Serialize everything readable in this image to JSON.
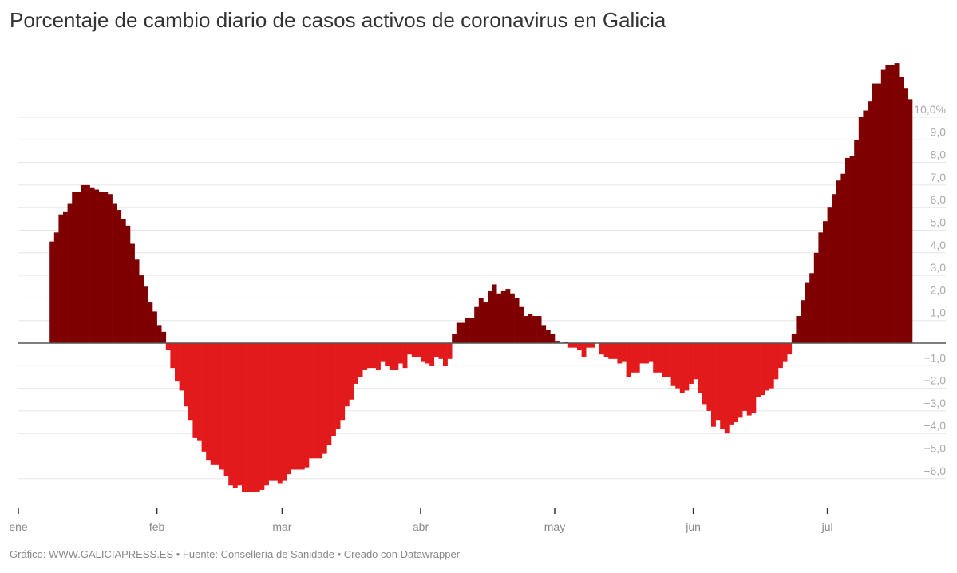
{
  "title": "Porcentaje de cambio diario de casos activos de coronavirus en Galicia",
  "footer": "Gráfico: WWW.GALICIAPRESS.ES • Fuente: Consellería de Sanidade • Creado con Datawrapper",
  "chart_data": {
    "type": "bar",
    "title": "Porcentaje de cambio diario de casos activos de coronavirus en Galicia",
    "xlabel": "",
    "ylabel": "",
    "ylim": [
      -6.6,
      12.4
    ],
    "grid": true,
    "colors": {
      "positive": "#7f0000",
      "negative": "#e31a1c"
    },
    "y_ticks": [
      {
        "value": 10,
        "label": "10,0%"
      },
      {
        "value": 9,
        "label": "9,0"
      },
      {
        "value": 8,
        "label": "8,0"
      },
      {
        "value": 7,
        "label": "7,0"
      },
      {
        "value": 6,
        "label": "6,0"
      },
      {
        "value": 5,
        "label": "5,0"
      },
      {
        "value": 4,
        "label": "4,0"
      },
      {
        "value": 3,
        "label": "3,0"
      },
      {
        "value": 2,
        "label": "2,0"
      },
      {
        "value": 1,
        "label": "1,0"
      },
      {
        "value": -1,
        "label": "−1,0"
      },
      {
        "value": -2,
        "label": "−2,0"
      },
      {
        "value": -3,
        "label": "−3,0"
      },
      {
        "value": -4,
        "label": "−4,0"
      },
      {
        "value": -5,
        "label": "−5,0"
      },
      {
        "value": -6,
        "label": "−6,0"
      }
    ],
    "x_ticks": [
      {
        "date": "01-01",
        "label": "ene"
      },
      {
        "date": "02-01",
        "label": "feb"
      },
      {
        "date": "03-01",
        "label": "mar"
      },
      {
        "date": "04-01",
        "label": "abr"
      },
      {
        "date": "05-01",
        "label": "may"
      },
      {
        "date": "06-01",
        "label": "jun"
      },
      {
        "date": "07-01",
        "label": "jul"
      }
    ],
    "x": [
      "01-08",
      "01-09",
      "01-10",
      "01-11",
      "01-12",
      "01-13",
      "01-14",
      "01-15",
      "01-16",
      "01-17",
      "01-18",
      "01-19",
      "01-20",
      "01-21",
      "01-22",
      "01-23",
      "01-24",
      "01-25",
      "01-26",
      "01-27",
      "01-28",
      "01-29",
      "01-30",
      "01-31",
      "02-01",
      "02-02",
      "02-03",
      "02-04",
      "02-05",
      "02-06",
      "02-07",
      "02-08",
      "02-09",
      "02-10",
      "02-11",
      "02-12",
      "02-13",
      "02-14",
      "02-15",
      "02-16",
      "02-17",
      "02-18",
      "02-19",
      "02-20",
      "02-21",
      "02-22",
      "02-23",
      "02-24",
      "02-25",
      "02-26",
      "02-27",
      "02-28",
      "03-01",
      "03-02",
      "03-03",
      "03-04",
      "03-05",
      "03-06",
      "03-07",
      "03-08",
      "03-09",
      "03-10",
      "03-11",
      "03-12",
      "03-13",
      "03-14",
      "03-15",
      "03-16",
      "03-17",
      "03-18",
      "03-19",
      "03-20",
      "03-21",
      "03-22",
      "03-23",
      "03-24",
      "03-25",
      "03-26",
      "03-27",
      "03-28",
      "03-29",
      "03-30",
      "03-31",
      "04-01",
      "04-02",
      "04-03",
      "04-04",
      "04-05",
      "04-06",
      "04-07",
      "04-08",
      "04-09",
      "04-10",
      "04-11",
      "04-12",
      "04-13",
      "04-14",
      "04-15",
      "04-16",
      "04-17",
      "04-18",
      "04-19",
      "04-20",
      "04-21",
      "04-22",
      "04-23",
      "04-24",
      "04-25",
      "04-26",
      "04-27",
      "04-28",
      "04-29",
      "04-30",
      "05-01",
      "05-02",
      "05-03",
      "05-04",
      "05-05",
      "05-06",
      "05-07",
      "05-08",
      "05-09",
      "05-10",
      "05-11",
      "05-12",
      "05-13",
      "05-14",
      "05-15",
      "05-16",
      "05-17",
      "05-18",
      "05-19",
      "05-20",
      "05-21",
      "05-22",
      "05-23",
      "05-24",
      "05-25",
      "05-26",
      "05-27",
      "05-28",
      "05-29",
      "05-30",
      "05-31",
      "06-01",
      "06-02",
      "06-03",
      "06-04",
      "06-05",
      "06-06",
      "06-07",
      "06-08",
      "06-09",
      "06-10",
      "06-11",
      "06-12",
      "06-13",
      "06-14",
      "06-15",
      "06-16",
      "06-17",
      "06-18",
      "06-19",
      "06-20",
      "06-21",
      "06-22",
      "06-23",
      "06-24",
      "06-25",
      "06-26",
      "06-27",
      "06-28",
      "06-29",
      "06-30",
      "07-01",
      "07-02",
      "07-03",
      "07-04",
      "07-05",
      "07-06",
      "07-07",
      "07-08",
      "07-09",
      "07-10",
      "07-11",
      "07-12",
      "07-13",
      "07-14",
      "07-15",
      "07-16",
      "07-17",
      "07-18",
      "07-19"
    ],
    "values": [
      4.5,
      4.9,
      5.7,
      5.8,
      6.2,
      6.7,
      6.7,
      7.0,
      7.0,
      6.9,
      6.8,
      6.7,
      6.7,
      6.6,
      6.2,
      5.9,
      5.5,
      5.2,
      4.4,
      3.7,
      3.0,
      2.5,
      1.8,
      1.4,
      0.8,
      0.5,
      -0.3,
      -1.1,
      -1.7,
      -2.1,
      -2.8,
      -3.4,
      -4.2,
      -4.3,
      -4.8,
      -5.2,
      -5.4,
      -5.4,
      -5.6,
      -5.9,
      -6.3,
      -6.4,
      -6.3,
      -6.6,
      -6.6,
      -6.6,
      -6.6,
      -6.5,
      -6.3,
      -6.1,
      -6.1,
      -6.2,
      -6.1,
      -5.8,
      -5.6,
      -5.6,
      -5.6,
      -5.5,
      -5.1,
      -5.1,
      -5.1,
      -4.9,
      -4.5,
      -4.1,
      -3.8,
      -3.4,
      -2.8,
      -2.5,
      -1.8,
      -1.5,
      -1.2,
      -1.1,
      -1.1,
      -1.2,
      -0.8,
      -1.0,
      -1.2,
      -1.2,
      -0.9,
      -1.1,
      -0.5,
      -0.6,
      -0.6,
      -0.8,
      -0.9,
      -1.0,
      -0.6,
      -0.7,
      -1.0,
      -0.7,
      0.4,
      0.9,
      0.9,
      1.1,
      1.1,
      1.6,
      2.0,
      1.8,
      2.3,
      2.6,
      2.2,
      2.3,
      2.4,
      2.2,
      2.0,
      1.6,
      1.2,
      1.3,
      1.2,
      1.2,
      0.8,
      0.6,
      0.4,
      0.1,
      0.02,
      0.07,
      -0.2,
      -0.2,
      -0.3,
      -0.6,
      -0.2,
      -0.2,
      0,
      -0.5,
      -0.6,
      -0.7,
      -0.7,
      -0.9,
      -0.8,
      -1.5,
      -1.3,
      -1.3,
      -0.9,
      -0.9,
      -0.8,
      -1.3,
      -1.3,
      -1.5,
      -1.5,
      -1.9,
      -2.0,
      -2.2,
      -2.1,
      -1.8,
      -1.6,
      -2.2,
      -2.7,
      -3.0,
      -3.7,
      -3.4,
      -3.8,
      -4.0,
      -3.6,
      -3.5,
      -3.3,
      -3.0,
      -3.2,
      -3.1,
      -2.4,
      -2.3,
      -2.1,
      -2.0,
      -1.6,
      -1.1,
      -0.8,
      -0.5,
      0.4,
      1.2,
      1.9,
      2.7,
      3.1,
      4.0,
      4.9,
      5.4,
      6.0,
      6.6,
      7.2,
      7.5,
      8.2,
      8.3,
      9.0,
      10.0,
      10.3,
      10.7,
      11.5,
      11.5,
      12.1,
      12.3,
      12.3,
      12.4,
      11.8,
      11.3,
      10.8
    ]
  }
}
